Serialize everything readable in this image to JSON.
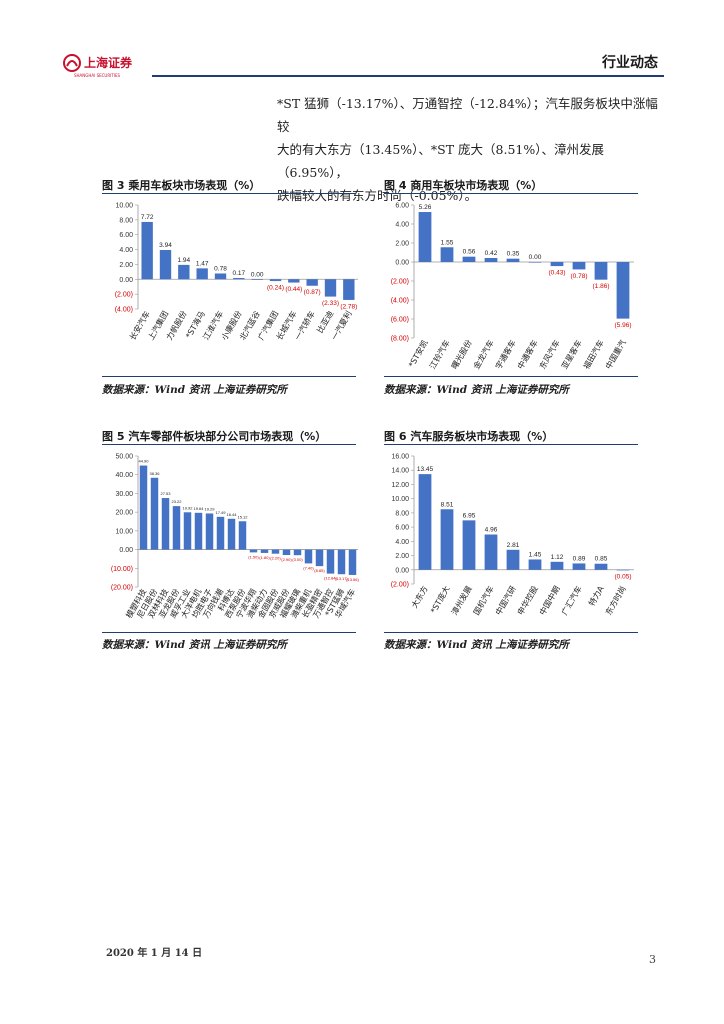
{
  "header": {
    "logo_text": "上海证券",
    "logo_sub": "SHANGHAI SECURITIES",
    "section": "行业动态"
  },
  "intro": {
    "line1": "*ST 猛狮（-13.17%）、万通智控（-12.84%）；汽车服务板块中涨幅较",
    "line2": "大的有大东方（13.45%）、*ST 庞大（8.51%）、漳州发展（6.95%），",
    "line3": "跌幅较大的有东方时尚（-0.05%）。"
  },
  "figures": {
    "f3": {
      "title": "图 3 乘用车板块市场表现（%）",
      "source": "数据来源：Wind 资讯 上海证券研究所"
    },
    "f4": {
      "title": "图 4 商用车板块市场表现（%）",
      "source": "数据来源：Wind 资讯 上海证券研究所"
    },
    "f5": {
      "title": "图 5 汽车零部件板块部分公司市场表现（%）",
      "source": "数据来源：Wind 资讯 上海证券研究所"
    },
    "f6": {
      "title": "图 6 汽车服务板块市场表现（%）",
      "source": "数据来源：Wind 资讯 上海证券研究所"
    }
  },
  "footer": {
    "date": "2020 年 1 月 14 日",
    "page": "3"
  },
  "colors": {
    "bar": "#4472c4",
    "neg_label": "#d40000",
    "accent": "#1f3f73"
  },
  "chart_data": [
    {
      "type": "bar",
      "categories": [
        "长安汽车",
        "上汽集团",
        "力帆股份",
        "*ST海马",
        "江淮汽车",
        "小康股份",
        "北汽蓝谷",
        "广汽集团",
        "长城汽车",
        "一汽轿车",
        "比亚迪",
        "一汽夏利"
      ],
      "values": [
        7.72,
        3.94,
        1.94,
        1.47,
        0.78,
        0.17,
        0.0,
        -0.24,
        -0.44,
        -0.87,
        -2.33,
        -2.78
      ],
      "labels": [
        "7.72",
        "3.94",
        "1.94",
        "1.47",
        "0.78",
        "0.17",
        "0.00",
        "(0.24)",
        "(0.44)",
        "(0.87)",
        "(2.33)",
        "(2.78)"
      ],
      "yticks": [
        "10.00",
        "8.00",
        "6.00",
        "4.00",
        "2.00",
        "0.00",
        "(2.00)",
        "(4.00)"
      ],
      "ylim": [
        -4,
        10
      ]
    },
    {
      "type": "bar",
      "categories": [
        "*ST安凯",
        "江铃汽车",
        "曙光股份",
        "金龙汽车",
        "宇通客车",
        "中通客车",
        "东风汽车",
        "亚星客车",
        "福田汽车",
        "中国重汽"
      ],
      "values": [
        5.26,
        1.55,
        0.56,
        0.42,
        0.35,
        0.0,
        -0.43,
        -0.78,
        -1.86,
        -5.96
      ],
      "labels": [
        "5.26",
        "1.55",
        "0.56",
        "0.42",
        "0.35",
        "0.00",
        "(0.43)",
        "(0.78)",
        "(1.86)",
        "(5.96)"
      ],
      "yticks": [
        "6.00",
        "4.00",
        "2.00",
        "0.00",
        "(2.00)",
        "(4.00)",
        "(6.00)",
        "(8.00)"
      ],
      "ylim": [
        -8,
        6
      ]
    },
    {
      "type": "bar",
      "categories": [
        "模塑科技",
        "尼日股份",
        "双林科技",
        "亚龙股份",
        "威孚工业",
        "大洋电机",
        "均胜电子",
        "万向钱潮",
        "科博达",
        "西泵股份",
        "宁波华翔",
        "潍柴动力",
        "金固股份",
        "京威股份",
        "福耀玻璃",
        "潍柴重机",
        "长盈精密",
        "万通智控",
        "*ST猛狮",
        "华域汽车"
      ],
      "values": [
        44.9,
        38.36,
        27.53,
        23.22,
        19.92,
        19.64,
        19.29,
        17.49,
        16.44,
        15.12,
        -1.5,
        -1.8,
        -2.2,
        -2.9,
        -3.0,
        -7.4,
        -8.85,
        -12.84,
        -13.17,
        -13.56
      ],
      "labels": [
        "44.90",
        "38.36",
        "27.53",
        "23.22",
        "19.92",
        "19.64",
        "19.29",
        "17.49",
        "16.44",
        "15.12",
        "(1.50)",
        "(1.80)",
        "(2.20)",
        "(2.90)",
        "(3.00)",
        "(7.40)",
        "(8.85)",
        "(12.84)",
        "(13.17)",
        "(13.56)"
      ],
      "yticks": [
        "50.00",
        "40.00",
        "30.00",
        "20.00",
        "10.00",
        "0.00",
        "(10.00)",
        "(20.00)"
      ],
      "ylim": [
        -20,
        50
      ]
    },
    {
      "type": "bar",
      "categories": [
        "大东方",
        "*ST庞大",
        "漳州发展",
        "国机汽车",
        "中国汽研",
        "申华控股",
        "中国中期",
        "广汇汽车",
        "特力A",
        "东方时尚"
      ],
      "values": [
        13.45,
        8.51,
        6.95,
        4.96,
        2.81,
        1.45,
        1.12,
        0.89,
        0.85,
        -0.05
      ],
      "labels": [
        "13.45",
        "8.51",
        "6.95",
        "4.96",
        "2.81",
        "1.45",
        "1.12",
        "0.89",
        "0.85",
        "(0.05)"
      ],
      "yticks": [
        "16.00",
        "14.00",
        "12.00",
        "10.00",
        "8.00",
        "6.00",
        "4.00",
        "2.00",
        "0.00",
        "(2.00)"
      ],
      "ylim": [
        -2,
        16
      ]
    }
  ]
}
